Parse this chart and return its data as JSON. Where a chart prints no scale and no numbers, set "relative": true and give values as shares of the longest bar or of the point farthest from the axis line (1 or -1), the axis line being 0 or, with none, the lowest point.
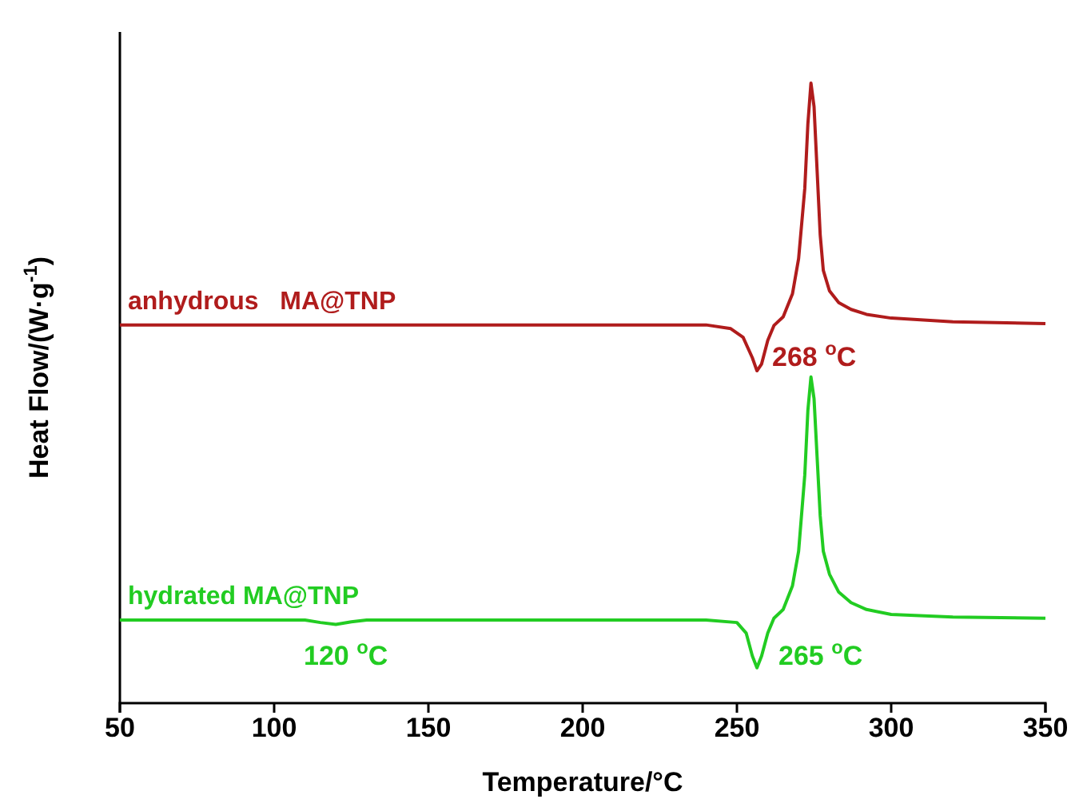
{
  "chart_data": {
    "type": "line",
    "relative": true,
    "xlabel": "Temperature/°C",
    "ylabel": "Heat Flow/(W·g$^{-1}$)",
    "xlim": [
      50,
      350
    ],
    "xticks": [
      50,
      100,
      150,
      200,
      250,
      300,
      350
    ],
    "line_style": "solid",
    "marker": "none",
    "series": [
      {
        "name": "anhydrous   MA@TNP",
        "color": "#b01c1c",
        "x": [
          50,
          100,
          150,
          200,
          240,
          248,
          252,
          255,
          256.5,
          258,
          260,
          262,
          265,
          268,
          270,
          272,
          273,
          274,
          275,
          276,
          277,
          278,
          280,
          283,
          287,
          292,
          300,
          320,
          350
        ],
        "values": [
          0.61,
          0.61,
          0.61,
          0.61,
          0.61,
          0.604,
          0.59,
          0.557,
          0.536,
          0.547,
          0.585,
          0.609,
          0.623,
          0.66,
          0.717,
          0.83,
          0.934,
          1.0,
          0.962,
          0.858,
          0.755,
          0.698,
          0.665,
          0.646,
          0.635,
          0.627,
          0.621,
          0.615,
          0.612
        ]
      },
      {
        "name": "hydrated MA@TNP",
        "color": "#22cc22",
        "x": [
          50,
          110,
          115,
          120,
          125,
          130,
          200,
          240,
          250,
          253,
          255,
          256.5,
          258,
          260,
          262,
          265,
          268,
          270,
          272,
          273,
          274,
          275,
          276,
          277,
          278,
          280,
          283,
          287,
          292,
          300,
          320,
          350
        ],
        "values": [
          0.134,
          0.134,
          0.13,
          0.127,
          0.131,
          0.134,
          0.134,
          0.134,
          0.13,
          0.113,
          0.076,
          0.057,
          0.076,
          0.113,
          0.137,
          0.151,
          0.189,
          0.245,
          0.368,
          0.472,
          0.526,
          0.491,
          0.396,
          0.302,
          0.245,
          0.208,
          0.179,
          0.162,
          0.151,
          0.143,
          0.139,
          0.137
        ]
      }
    ],
    "annotations": [
      "268 $^{o}$C",
      "265 $^{o}$C",
      "120 $^{o}$C"
    ]
  }
}
